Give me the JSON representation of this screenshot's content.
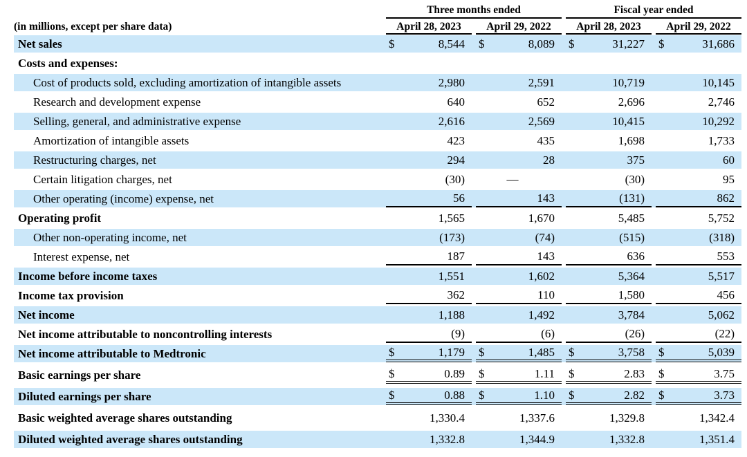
{
  "table": {
    "corner_label": "(in millions, except per share data)",
    "column_groups": [
      {
        "label": "Three months ended"
      },
      {
        "label": "Fiscal year ended"
      }
    ],
    "columns": [
      "April 28, 2023",
      "April 29, 2022",
      "April 28, 2023",
      "April 29, 2022"
    ],
    "colors": {
      "row_shade": "#cbe7f9",
      "rule": "#000000",
      "text": "#000000"
    },
    "rows": [
      {
        "label": "Net sales",
        "bold": true,
        "indent": false,
        "shaded": true,
        "dollar": true,
        "rule": "none",
        "gap": false,
        "values": [
          "8,544",
          "8,089",
          "31,227",
          "31,686"
        ]
      },
      {
        "label": "Costs and expenses:",
        "bold": true,
        "indent": false,
        "shaded": false,
        "dollar": false,
        "rule": "none",
        "gap": false,
        "values": [
          "",
          "",
          "",
          ""
        ]
      },
      {
        "label": "Cost of products sold, excluding amortization of intangible assets",
        "bold": false,
        "indent": true,
        "shaded": true,
        "dollar": false,
        "rule": "none",
        "gap": false,
        "values": [
          "2,980",
          "2,591",
          "10,719",
          "10,145"
        ]
      },
      {
        "label": "Research and development expense",
        "bold": false,
        "indent": true,
        "shaded": false,
        "dollar": false,
        "rule": "none",
        "gap": false,
        "values": [
          "640",
          "652",
          "2,696",
          "2,746"
        ]
      },
      {
        "label": "Selling, general, and administrative expense",
        "bold": false,
        "indent": true,
        "shaded": true,
        "dollar": false,
        "rule": "none",
        "gap": false,
        "values": [
          "2,616",
          "2,569",
          "10,415",
          "10,292"
        ]
      },
      {
        "label": "Amortization of intangible assets",
        "bold": false,
        "indent": true,
        "shaded": false,
        "dollar": false,
        "rule": "none",
        "gap": false,
        "values": [
          "423",
          "435",
          "1,698",
          "1,733"
        ]
      },
      {
        "label": "Restructuring charges, net",
        "bold": false,
        "indent": true,
        "shaded": true,
        "dollar": false,
        "rule": "none",
        "gap": false,
        "values": [
          "294",
          "28",
          "375",
          "60"
        ]
      },
      {
        "label": "Certain litigation charges, net",
        "bold": false,
        "indent": true,
        "shaded": false,
        "dollar": false,
        "rule": "none",
        "gap": false,
        "values": [
          "(30)",
          "—",
          "(30)",
          "95"
        ]
      },
      {
        "label": "Other operating (income) expense, net",
        "bold": false,
        "indent": true,
        "shaded": true,
        "dollar": false,
        "rule": "single",
        "gap": false,
        "values": [
          "56",
          "143",
          "(131)",
          "862"
        ]
      },
      {
        "label": "Operating profit",
        "bold": true,
        "indent": false,
        "shaded": false,
        "dollar": false,
        "rule": "none",
        "gap": false,
        "values": [
          "1,565",
          "1,670",
          "5,485",
          "5,752"
        ]
      },
      {
        "label": "Other non-operating income, net",
        "bold": false,
        "indent": true,
        "shaded": true,
        "dollar": false,
        "rule": "none",
        "gap": false,
        "values": [
          "(173)",
          "(74)",
          "(515)",
          "(318)"
        ]
      },
      {
        "label": "Interest expense, net",
        "bold": false,
        "indent": true,
        "shaded": false,
        "dollar": false,
        "rule": "single",
        "gap": false,
        "values": [
          "187",
          "143",
          "636",
          "553"
        ]
      },
      {
        "label": "Income before income taxes",
        "bold": true,
        "indent": false,
        "shaded": true,
        "dollar": false,
        "rule": "none",
        "gap": false,
        "values": [
          "1,551",
          "1,602",
          "5,364",
          "5,517"
        ]
      },
      {
        "label": "Income tax provision",
        "bold": true,
        "indent": false,
        "shaded": false,
        "dollar": false,
        "rule": "single",
        "gap": false,
        "values": [
          "362",
          "110",
          "1,580",
          "456"
        ]
      },
      {
        "label": "Net income",
        "bold": true,
        "indent": false,
        "shaded": true,
        "dollar": false,
        "rule": "none",
        "gap": false,
        "values": [
          "1,188",
          "1,492",
          "3,784",
          "5,062"
        ]
      },
      {
        "label": "Net income attributable to noncontrolling interests",
        "bold": true,
        "indent": false,
        "shaded": false,
        "dollar": false,
        "rule": "single",
        "gap": false,
        "values": [
          "(9)",
          "(6)",
          "(26)",
          "(22)"
        ]
      },
      {
        "label": "Net income attributable to Medtronic",
        "bold": true,
        "indent": false,
        "shaded": true,
        "dollar": true,
        "rule": "double",
        "gap": false,
        "values": [
          "1,179",
          "1,485",
          "3,758",
          "5,039"
        ]
      },
      {
        "label": "Basic earnings per share",
        "bold": true,
        "indent": false,
        "shaded": false,
        "dollar": true,
        "rule": "double",
        "gap": true,
        "values": [
          "0.89",
          "1.11",
          "2.83",
          "3.75"
        ]
      },
      {
        "label": "Diluted earnings per share",
        "bold": true,
        "indent": false,
        "shaded": true,
        "dollar": true,
        "rule": "double",
        "gap": true,
        "values": [
          "0.88",
          "1.10",
          "2.82",
          "3.73"
        ]
      },
      {
        "label": "Basic weighted average shares outstanding",
        "bold": true,
        "indent": false,
        "shaded": false,
        "dollar": false,
        "rule": "none",
        "gap": true,
        "values": [
          "1,330.4",
          "1,337.6",
          "1,329.8",
          "1,342.4"
        ]
      },
      {
        "label": "Diluted weighted average shares outstanding",
        "bold": true,
        "indent": false,
        "shaded": true,
        "dollar": false,
        "rule": "none",
        "gap": true,
        "values": [
          "1,332.8",
          "1,344.9",
          "1,332.8",
          "1,351.4"
        ]
      }
    ]
  }
}
